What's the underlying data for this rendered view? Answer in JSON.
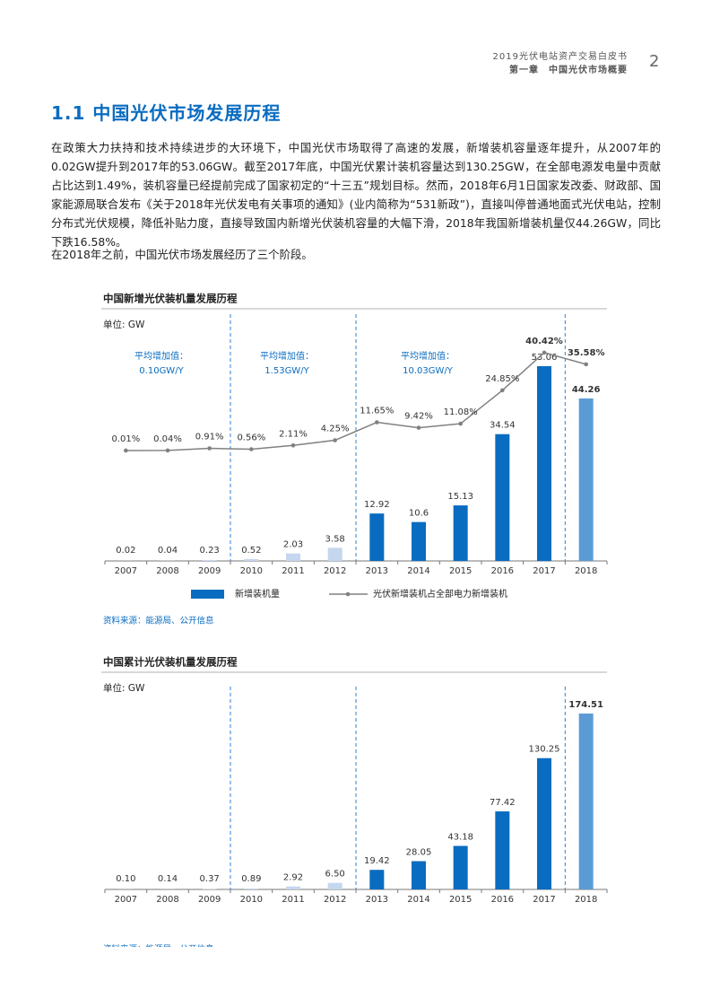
{
  "header": {
    "book": "2019光伏电站资产交易白皮书",
    "chapter": "第一章　中国光伏市场概要",
    "page": "2"
  },
  "section_title": "1.1 中国光伏市场发展历程",
  "paragraphs": [
    "在政策大力扶持和技术持续进步的大环境下，中国光伏市场取得了高速的发展，新增装机容量逐年提升，从2007年的0.02GW提升到2017年的53.06GW。截至2017年底，中国光伏累计装机容量达到130.25GW，在全部电源发电量中贡献占比达到1.49%，装机容量已经提前完成了国家初定的“十三五”规划目标。然而，2018年6月1日国家发改委、财政部、国家能源局联合发布《关于2018年光伏发电有关事项的通知》(业内简称为“531新政”)，直接叫停普通地面式光伏电站，控制分布式光伏规模，降低补贴力度，直接导致国内新增光伏装机容量的大幅下滑，2018年我国新增装机量仅44.26GW，同比下跌16.58%。",
    "在2018年之前，中国光伏市场发展经历了三个阶段。"
  ],
  "chart_data": [
    {
      "type": "bar-line",
      "title": "中国新增光伏装机量发展历程",
      "unit": "单位: GW",
      "source": "资料来源：能源局、公开信息",
      "categories": [
        "2007",
        "2008",
        "2009",
        "2010",
        "2011",
        "2012",
        "2013",
        "2014",
        "2015",
        "2016",
        "2017",
        "2018"
      ],
      "annotations": [
        {
          "label": "平均增加值：",
          "value": "0.10GW/Y"
        },
        {
          "label": "平均增加值：",
          "value": "1.53GW/Y"
        },
        {
          "label": "平均增加值：",
          "value": "10.03GW/Y"
        }
      ],
      "series": [
        {
          "name": "新增装机量",
          "type": "bar",
          "color": "#0a6cc0",
          "bar_colors": [
            "#c5d7ee",
            "#c5d7ee",
            "#c5d7ee",
            "#c5d7ee",
            "#c5d7ee",
            "#c5d7ee",
            "#0a6cc0",
            "#0a6cc0",
            "#0a6cc0",
            "#0a6cc0",
            "#0a6cc0",
            "#5b9bd5"
          ],
          "values": [
            0.02,
            0.04,
            0.23,
            0.52,
            2.03,
            3.58,
            12.92,
            10.6,
            15.13,
            34.54,
            53.06,
            44.26
          ]
        },
        {
          "name": "光伏新增装机占全部电力新增装机",
          "type": "line",
          "color": "#808080",
          "values": [
            0.01,
            0.04,
            0.91,
            0.56,
            2.11,
            4.25,
            11.65,
            9.42,
            11.08,
            24.85,
            40.42,
            35.58
          ],
          "value_labels": [
            "0.01%",
            "0.04%",
            "0.91%",
            "0.56%",
            "2.11%",
            "4.25%",
            "11.65%",
            "9.42%",
            "11.08%",
            "24.85%",
            "40.42%",
            "35.58%"
          ]
        }
      ]
    },
    {
      "type": "bar",
      "title": "中国累计光伏装机量发展历程",
      "unit": "单位: GW",
      "source": "资料来源：能源局、公开信息",
      "categories": [
        "2007",
        "2008",
        "2009",
        "2010",
        "2011",
        "2012",
        "2013",
        "2014",
        "2015",
        "2016",
        "2017",
        "2018"
      ],
      "bar_colors": [
        "#c5d7ee",
        "#c5d7ee",
        "#c5d7ee",
        "#c5d7ee",
        "#c5d7ee",
        "#c5d7ee",
        "#0a6cc0",
        "#0a6cc0",
        "#0a6cc0",
        "#0a6cc0",
        "#0a6cc0",
        "#5b9bd5"
      ],
      "values": [
        0.1,
        0.14,
        0.37,
        0.89,
        2.92,
        6.5,
        19.42,
        28.05,
        43.18,
        77.42,
        130.25,
        174.51
      ],
      "value_labels": [
        "0.10",
        "0.14",
        "0.37",
        "0.89",
        "2.92",
        "6.50",
        "19.42",
        "28.05",
        "43.18",
        "77.42",
        "130.25",
        "174.51"
      ]
    }
  ]
}
